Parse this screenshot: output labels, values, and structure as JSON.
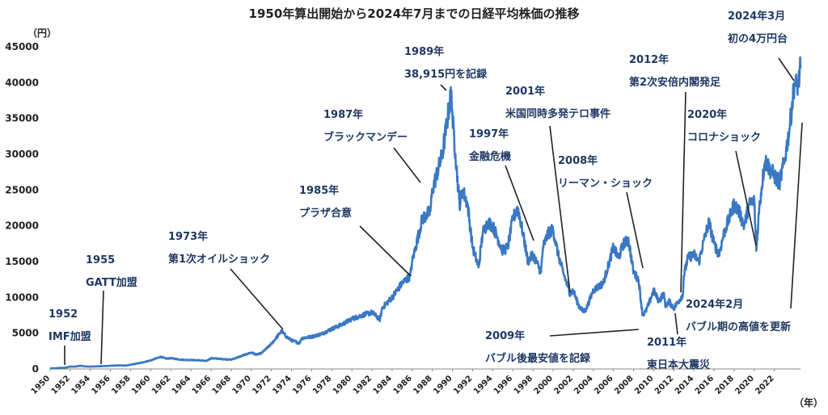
{
  "chart_data": {
    "type": "line",
    "title": "1950年算出開始から2024年7月までの日経平均株価の推移",
    "ylabel": "（円）",
    "xlabel": "（年）",
    "ylim": [
      0,
      45000
    ],
    "xlim": [
      1950,
      2024.6
    ],
    "grid": false,
    "y_ticks": [
      0,
      5000,
      10000,
      15000,
      20000,
      25000,
      30000,
      35000,
      40000,
      45000
    ],
    "x_ticks": [
      1950,
      1952,
      1954,
      1956,
      1958,
      1960,
      1962,
      1964,
      1966,
      1968,
      1970,
      1972,
      1974,
      1976,
      1978,
      1980,
      1982,
      1984,
      1986,
      1988,
      1990,
      1992,
      1994,
      1996,
      1998,
      2000,
      2002,
      2004,
      2006,
      2008,
      2010,
      2012,
      2014,
      2016,
      2018,
      2020,
      2022
    ],
    "series": [
      {
        "color": "#3a78c3",
        "x": [
          1950.0,
          1950.5,
          1951.0,
          1951.5,
          1952.0,
          1952.5,
          1953.0,
          1953.2,
          1953.5,
          1954.0,
          1955.0,
          1956.0,
          1957.0,
          1957.5,
          1958.0,
          1959.0,
          1960.0,
          1961.0,
          1961.5,
          1962.0,
          1962.5,
          1963.0,
          1964.0,
          1965.0,
          1965.5,
          1966.0,
          1967.0,
          1968.0,
          1969.0,
          1970.0,
          1970.5,
          1971.0,
          1972.0,
          1973.0,
          1973.5,
          1974.0,
          1974.8,
          1975.0,
          1976.0,
          1977.0,
          1978.0,
          1979.0,
          1980.0,
          1981.0,
          1982.0,
          1982.8,
          1983.0,
          1984.0,
          1985.0,
          1985.8,
          1986.0,
          1987.0,
          1987.8,
          1988.0,
          1989.0,
          1989.9,
          1990.0,
          1990.3,
          1990.7,
          1991.0,
          1991.5,
          1992.0,
          1992.6,
          1993.0,
          1993.5,
          1994.0,
          1995.0,
          1995.5,
          1996.0,
          1996.5,
          1997.0,
          1997.5,
          1998.0,
          1998.8,
          1999.0,
          1999.5,
          2000.0,
          2000.5,
          2001.0,
          2001.7,
          2002.0,
          2002.5,
          2003.0,
          2003.3,
          2004.0,
          2004.5,
          2005.0,
          2005.5,
          2006.0,
          2006.5,
          2007.0,
          2007.5,
          2008.0,
          2008.5,
          2008.9,
          2009.2,
          2009.5,
          2010.0,
          2010.5,
          2011.0,
          2011.2,
          2011.5,
          2012.0,
          2012.5,
          2012.9,
          2013.0,
          2013.4,
          2014.0,
          2014.5,
          2015.0,
          2015.5,
          2016.0,
          2016.5,
          2017.0,
          2017.5,
          2018.0,
          2018.5,
          2019.0,
          2019.5,
          2020.0,
          2020.2,
          2020.5,
          2021.0,
          2021.2,
          2021.5,
          2022.0,
          2022.5,
          2023.0,
          2023.5,
          2024.0,
          2024.2,
          2024.4,
          2024.6
        ],
        "values": [
          100,
          95,
          160,
          170,
          350,
          330,
          460,
          400,
          350,
          330,
          380,
          450,
          500,
          470,
          600,
          850,
          1200,
          1700,
          1450,
          1500,
          1400,
          1300,
          1250,
          1200,
          1100,
          1500,
          1400,
          1300,
          1800,
          2300,
          2000,
          2200,
          3500,
          5300,
          4500,
          4000,
          3600,
          4300,
          4500,
          4900,
          5600,
          6200,
          7000,
          7500,
          7900,
          6900,
          8500,
          10000,
          12000,
          13000,
          15000,
          21000,
          22000,
          25000,
          30000,
          38915,
          35000,
          30000,
          23000,
          25000,
          23000,
          17000,
          14200,
          19000,
          20500,
          20000,
          16500,
          17000,
          21000,
          22500,
          19000,
          15000,
          16000,
          13500,
          17000,
          18900,
          19500,
          16000,
          13500,
          10500,
          11000,
          9000,
          8000,
          8400,
          11000,
          11500,
          12000,
          14500,
          17000,
          15500,
          17500,
          18000,
          13500,
          12500,
          7500,
          8000,
          9000,
          11000,
          9500,
          10500,
          8700,
          9500,
          8500,
          9500,
          10400,
          13000,
          15500,
          16000,
          15000,
          18000,
          20500,
          17500,
          16000,
          19000,
          21000,
          23000,
          22000,
          20000,
          23000,
          23500,
          16500,
          22500,
          28500,
          29000,
          28000,
          27000,
          26000,
          29000,
          33500,
          40000,
          39500,
          40000,
          42000
        ]
      }
    ]
  },
  "annotations": [
    {
      "lines": [
        "1952",
        "IMF加盟"
      ]
    },
    {
      "lines": [
        "1955",
        "GATT加盟"
      ]
    },
    {
      "lines": [
        "1973年",
        "第1次オイルショック"
      ]
    },
    {
      "lines": [
        "1985年",
        "プラザ合意"
      ]
    },
    {
      "lines": [
        "1987年",
        "ブラックマンデー"
      ]
    },
    {
      "lines": [
        "1989年",
        "38,915円を記録"
      ]
    },
    {
      "lines": [
        "1997年",
        "金融危機"
      ]
    },
    {
      "lines": [
        "2001年",
        "米国同時多発テロ事件"
      ]
    },
    {
      "lines": [
        "2008年",
        "リーマン・ショック"
      ]
    },
    {
      "lines": [
        "2009年",
        "バブル後最安値を記録"
      ]
    },
    {
      "lines": [
        "2011年",
        "東日本大震災"
      ]
    },
    {
      "lines": [
        "2012年",
        "第2次安倍内閣発足"
      ]
    },
    {
      "lines": [
        "2020年",
        "コロナショック"
      ]
    },
    {
      "lines": [
        "2024年2月",
        "バブル期の高値を更新"
      ]
    },
    {
      "lines": [
        "2024年3月",
        "初の4万円台"
      ]
    }
  ]
}
